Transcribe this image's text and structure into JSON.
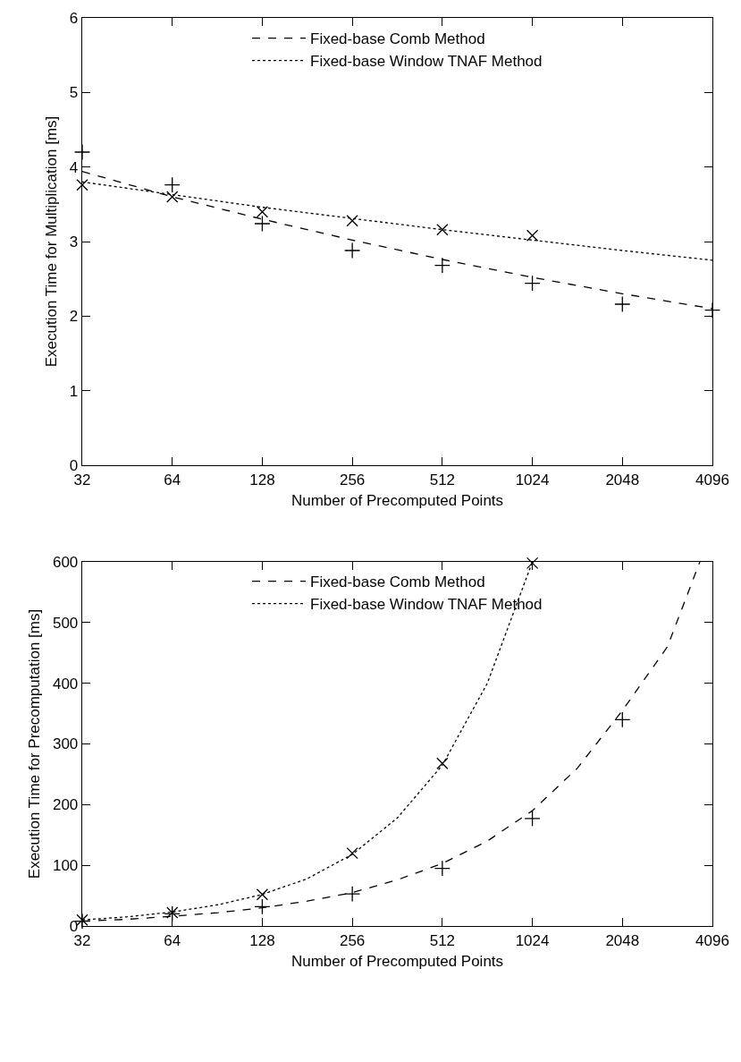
{
  "chart_data": [
    {
      "type": "line",
      "xlabel": "Number of Precomputed Points",
      "ylabel": "Execution Time for Multiplication [ms]",
      "log": "x",
      "xlim": [
        32,
        4096
      ],
      "xticks": [
        32,
        64,
        128,
        256,
        512,
        1024,
        2048,
        4096
      ],
      "ylim": [
        0,
        6
      ],
      "yticks": [
        0,
        1,
        2,
        3,
        4,
        5,
        6
      ],
      "legend": "top",
      "series": [
        {
          "name": "Fixed-base Comb Method",
          "type": "line",
          "line_style": "dashed",
          "marker": "none",
          "color": "#000000",
          "x": [
            32,
            64,
            128,
            256,
            512,
            1024,
            2048,
            4096
          ],
          "values": [
            3.94,
            3.6,
            3.3,
            3.02,
            2.76,
            2.52,
            2.3,
            2.1
          ]
        },
        {
          "name": "Fixed-base Window TNAF Method",
          "type": "line",
          "line_style": "dotted",
          "marker": "none",
          "color": "#000000",
          "x": [
            32,
            64,
            128,
            256,
            512,
            1024,
            2048,
            4096
          ],
          "values": [
            3.8,
            3.63,
            3.46,
            3.31,
            3.16,
            3.02,
            2.88,
            2.75
          ]
        },
        {
          "type": "scatter",
          "marker": "cross",
          "color": "#000000",
          "x": [
            32,
            64,
            128,
            256,
            512,
            1024,
            2048,
            4096
          ],
          "values": [
            4.2,
            3.76,
            3.24,
            2.88,
            2.68,
            2.44,
            2.16,
            2.08
          ]
        },
        {
          "type": "scatter",
          "marker": "x",
          "color": "#000000",
          "x": [
            32,
            64,
            128,
            256,
            512,
            1024
          ],
          "values": [
            3.76,
            3.6,
            3.4,
            3.28,
            3.16,
            3.08
          ]
        }
      ]
    },
    {
      "type": "line",
      "xlabel": "Number of Precomputed Points",
      "ylabel": "Execution Time for Precomputation [ms]",
      "log": "x",
      "xlim": [
        32,
        4096
      ],
      "xticks": [
        32,
        64,
        128,
        256,
        512,
        1024,
        2048,
        4096
      ],
      "ylim": [
        0,
        600
      ],
      "yticks": [
        0,
        100,
        200,
        300,
        400,
        500,
        600
      ],
      "legend": "top",
      "series": [
        {
          "name": "Fixed-base Comb Method",
          "type": "line",
          "line_style": "dashed",
          "marker": "none",
          "color": "#000000",
          "x": [
            32,
            45,
            64,
            91,
            128,
            181,
            256,
            362,
            512,
            724,
            1024,
            1448,
            2048,
            2896,
            3718
          ],
          "values": [
            8,
            11,
            16,
            22,
            30,
            41,
            55,
            76,
            103,
            140,
            190,
            260,
            355,
            460,
            600
          ]
        },
        {
          "name": "Fixed-base Window TNAF Method",
          "type": "line",
          "line_style": "dotted",
          "marker": "none",
          "color": "#000000",
          "x": [
            32,
            45,
            64,
            91,
            128,
            181,
            256,
            362,
            512,
            724,
            1024
          ],
          "values": [
            10,
            15,
            23,
            35,
            52,
            78,
            118,
            178,
            265,
            400,
            600
          ]
        },
        {
          "type": "scatter",
          "marker": "cross",
          "color": "#000000",
          "x": [
            32,
            64,
            128,
            256,
            512,
            1024,
            2048
          ],
          "values": [
            8,
            20,
            32,
            53,
            95,
            177,
            340
          ]
        },
        {
          "type": "scatter",
          "marker": "x",
          "color": "#000000",
          "x": [
            32,
            64,
            128,
            256,
            512,
            1024
          ],
          "values": [
            10,
            22,
            52,
            120,
            268,
            598
          ]
        }
      ]
    }
  ]
}
